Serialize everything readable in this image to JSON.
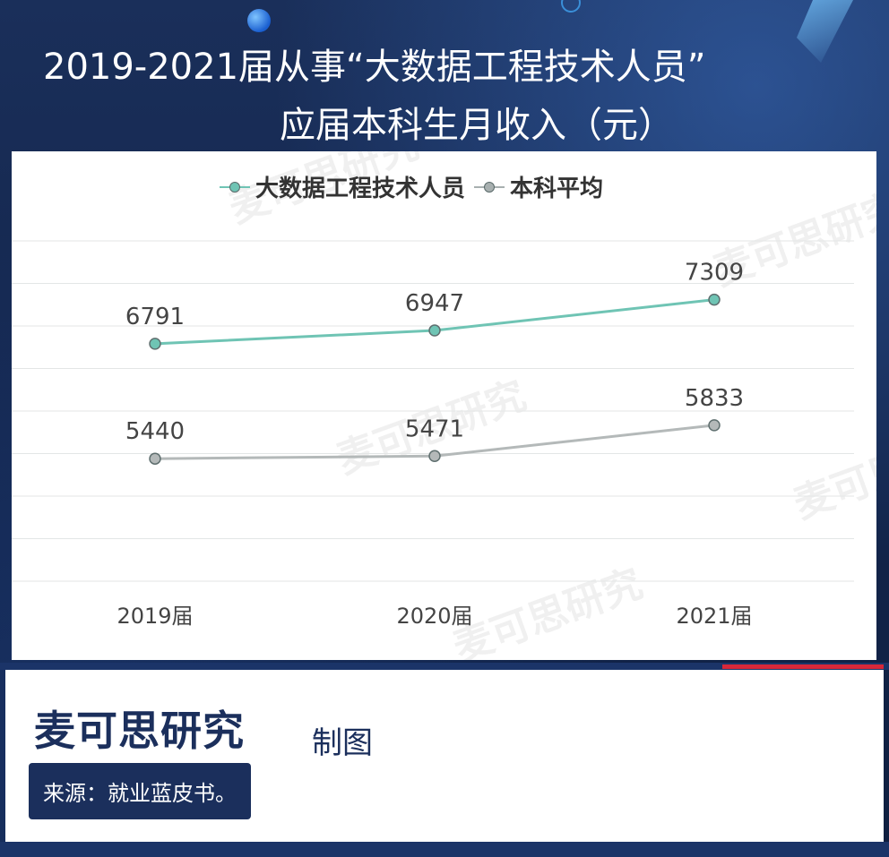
{
  "title": {
    "line1": "2019-2021届从事“大数据工程技术人员”",
    "line2": "应届本科生月收入（元）"
  },
  "chart_data": {
    "type": "line",
    "categories": [
      "2019届",
      "2020届",
      "2021届"
    ],
    "series": [
      {
        "name": "大数据工程技术人员",
        "values": [
          6791,
          6947,
          7309
        ],
        "color": "#6fc4b4"
      },
      {
        "name": "本科平均",
        "values": [
          5440,
          5471,
          5833
        ],
        "color": "#b4b9b9"
      }
    ],
    "ylim": [
      4000,
      8000
    ],
    "grid": true,
    "legend": "top-center"
  },
  "watermark": "麦可思研究",
  "footer": {
    "brand": "麦可思研究",
    "brand_sub": "制图",
    "source": "来源：就业蓝皮书。"
  }
}
